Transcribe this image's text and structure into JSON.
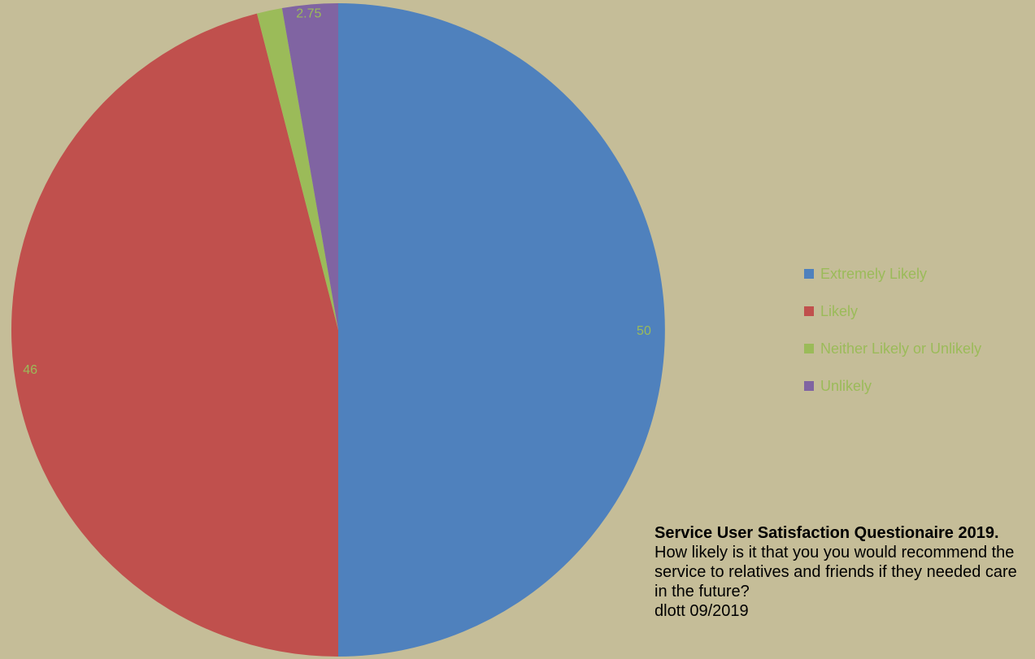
{
  "chart_data": {
    "type": "pie",
    "slices": [
      {
        "label": "Extremely Likely",
        "value": 50,
        "color": "#4F81BD",
        "data_label": "50"
      },
      {
        "label": "Likely",
        "value": 46,
        "color": "#C0504D",
        "data_label": "46"
      },
      {
        "label": "Neither Likely or Unlikely",
        "value": 1.25,
        "color": "#9BBB59",
        "data_label": ""
      },
      {
        "label": "Unlikely",
        "value": 2.75,
        "color": "#8064A2",
        "data_label": "2.75"
      }
    ],
    "label_color": "#9BBB59",
    "legend_placement": "right"
  },
  "caption": {
    "title": "Service User Satisfaction Questionaire 2019.",
    "question": "How likely is it that you you would recommend the service to relatives and friends if they needed care in the future?",
    "credit": "dlott 09/2019"
  }
}
